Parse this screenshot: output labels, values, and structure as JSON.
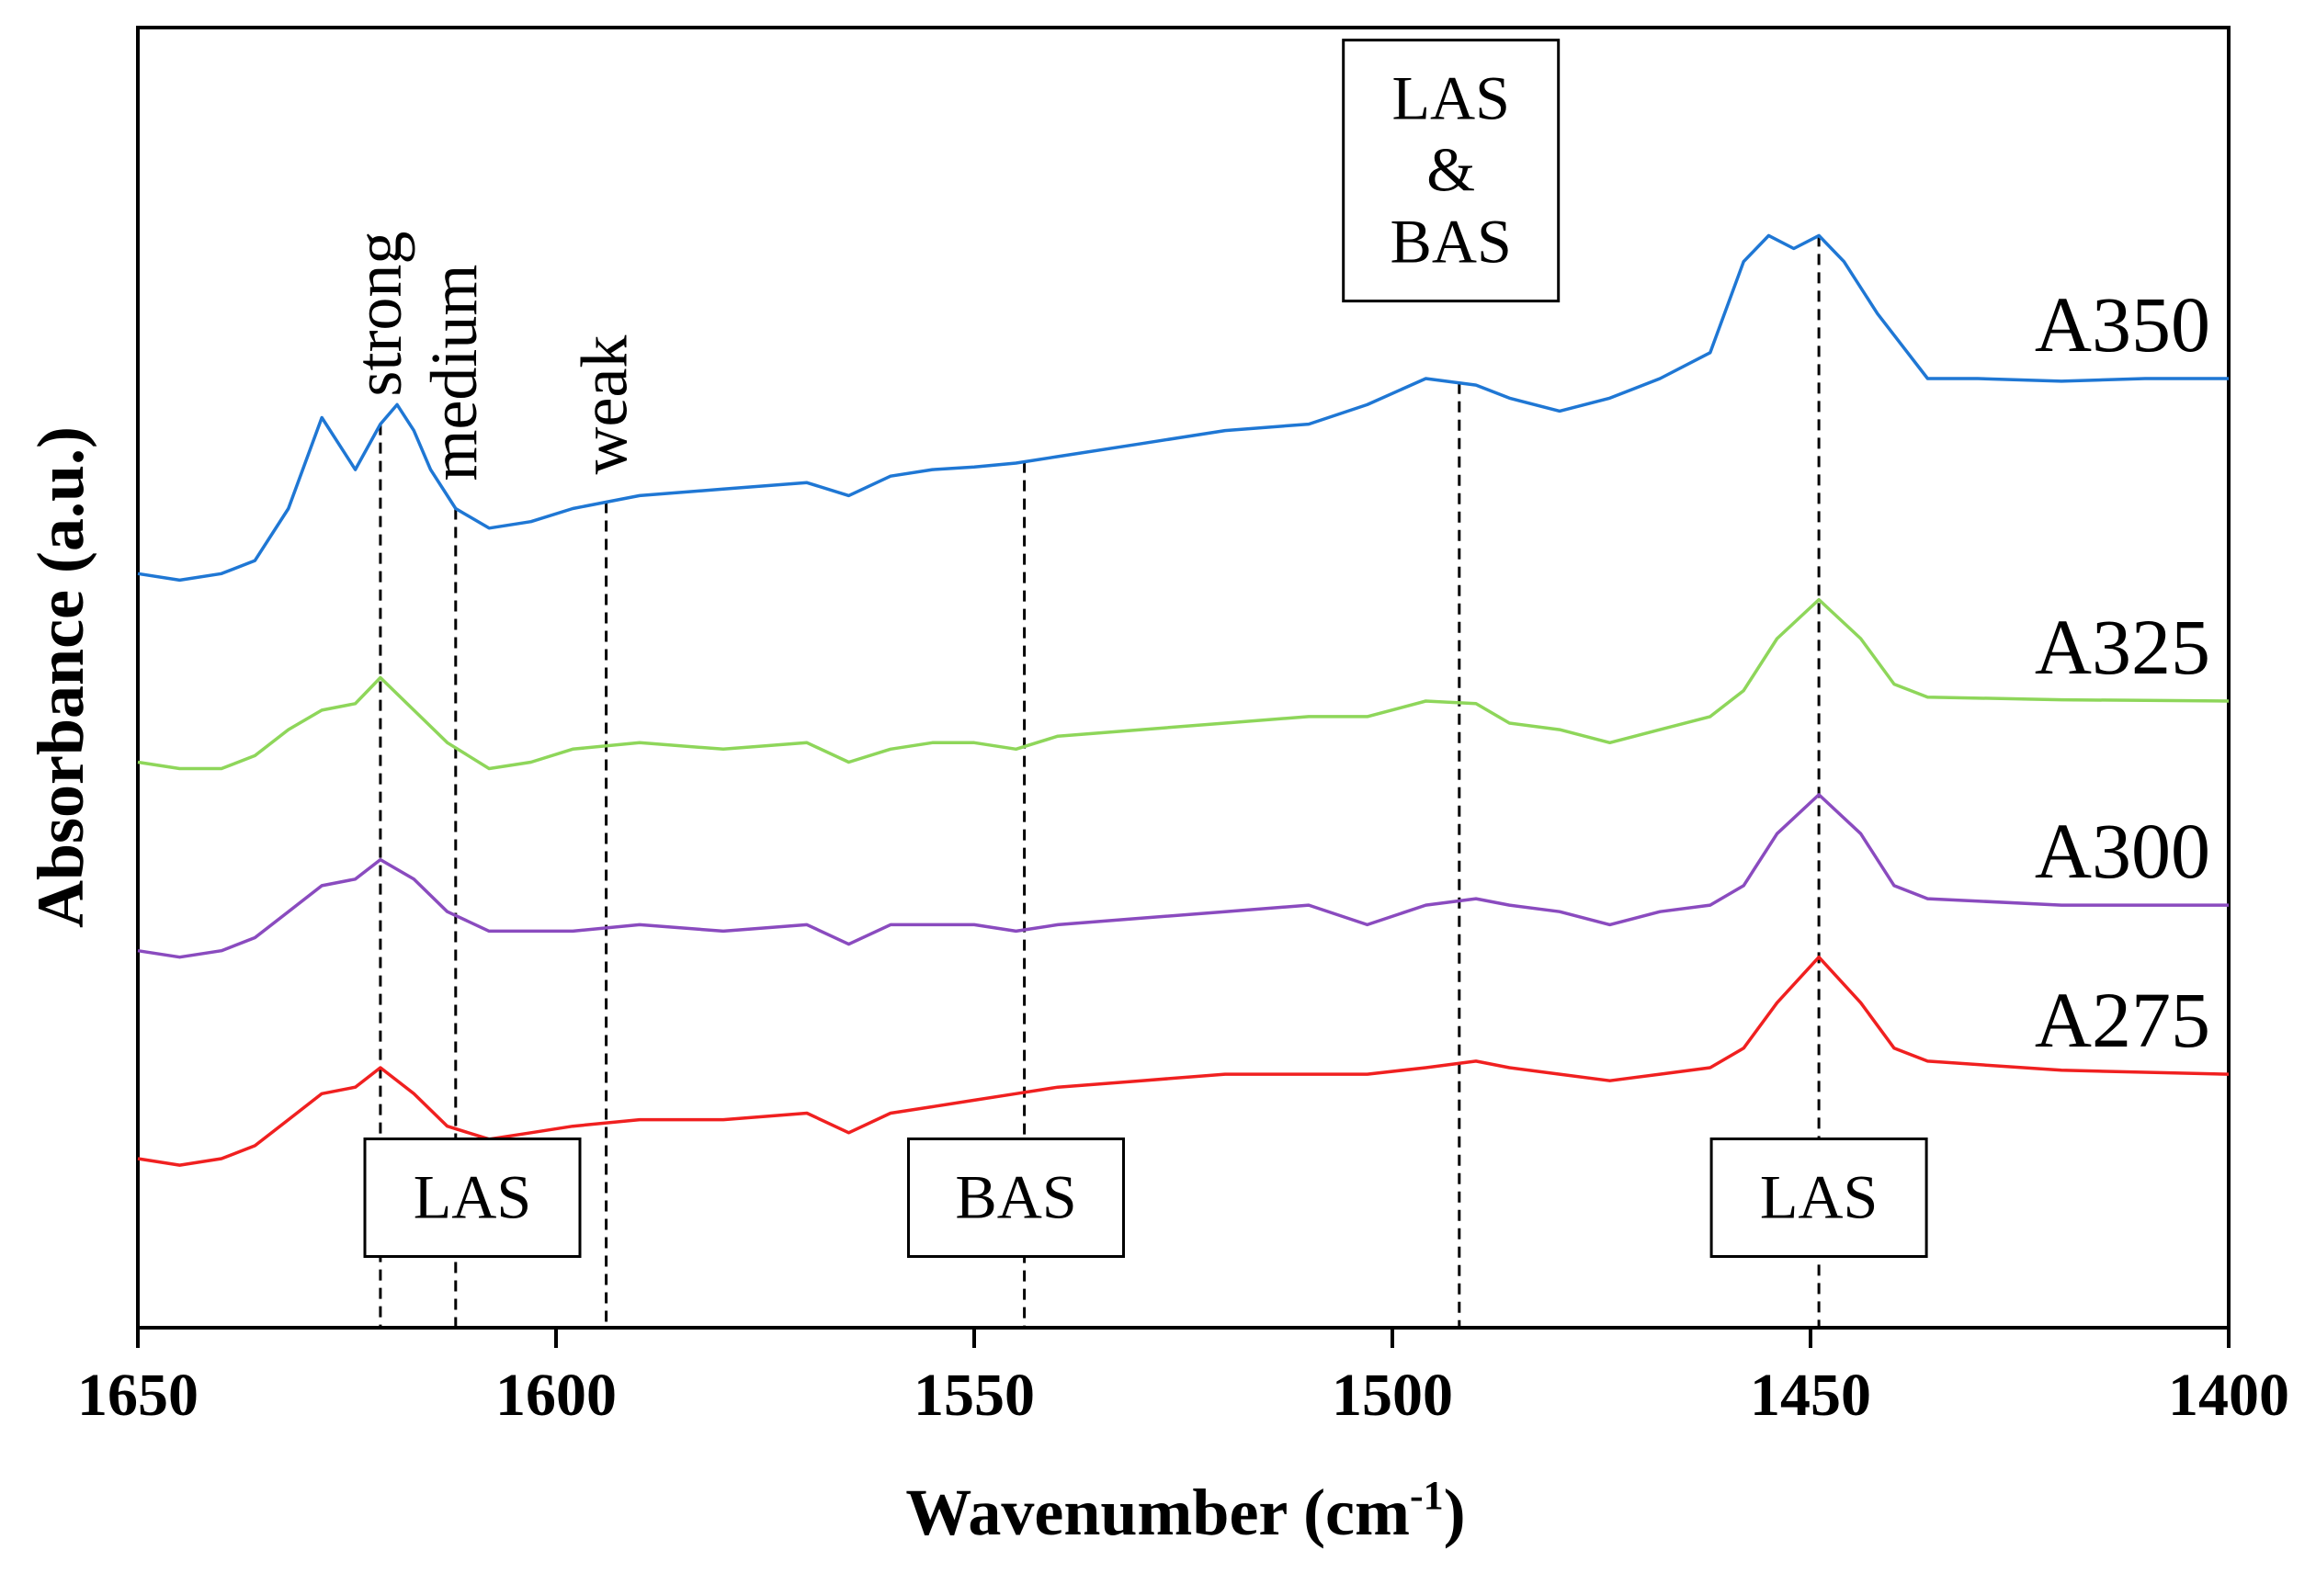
{
  "chart_data": {
    "type": "line",
    "title": "",
    "xlabel": "Wavenumber (cm",
    "xlabel_sup": "-1",
    "xlabel_close": ")",
    "ylabel": "Absorbance (a.u.)",
    "xlim": [
      1650,
      1400
    ],
    "ylim": [
      0,
      10
    ],
    "x_reversed": true,
    "grid": false,
    "legend": "inline labels at right end of each curve",
    "x_ticks": [
      1650,
      1600,
      1550,
      1500,
      1450,
      1400
    ],
    "x_tick_labels": [
      "1650",
      "1600",
      "1550",
      "1500",
      "1450",
      "1400"
    ],
    "series": [
      {
        "name": "A350",
        "color": "#1f77d4",
        "x": [
          1650,
          1645,
          1640,
          1636,
          1632,
          1628,
          1624,
          1621,
          1619,
          1617,
          1615,
          1612,
          1608,
          1603,
          1598,
          1590,
          1580,
          1570,
          1565,
          1560,
          1555,
          1550,
          1545,
          1540,
          1530,
          1520,
          1510,
          1503,
          1496,
          1490,
          1486,
          1480,
          1474,
          1468,
          1462,
          1458,
          1455,
          1452,
          1449,
          1446,
          1442,
          1436,
          1430,
          1420,
          1410,
          1400
        ],
        "values": [
          5.8,
          5.75,
          5.8,
          5.9,
          6.3,
          7.0,
          6.6,
          6.95,
          7.1,
          6.9,
          6.6,
          6.3,
          6.15,
          6.2,
          6.3,
          6.4,
          6.45,
          6.5,
          6.4,
          6.55,
          6.6,
          6.62,
          6.65,
          6.7,
          6.8,
          6.9,
          6.95,
          7.1,
          7.3,
          7.25,
          7.15,
          7.05,
          7.15,
          7.3,
          7.5,
          8.2,
          8.4,
          8.3,
          8.4,
          8.2,
          7.8,
          7.3,
          7.3,
          7.28,
          7.3,
          7.3
        ]
      },
      {
        "name": "A325",
        "color": "#8ed65a",
        "x": [
          1650,
          1645,
          1640,
          1636,
          1632,
          1628,
          1624,
          1621,
          1617,
          1613,
          1608,
          1603,
          1598,
          1590,
          1580,
          1570,
          1565,
          1560,
          1555,
          1550,
          1545,
          1540,
          1530,
          1520,
          1510,
          1503,
          1496,
          1490,
          1486,
          1480,
          1474,
          1468,
          1462,
          1458,
          1454,
          1449,
          1444,
          1440,
          1436,
          1420,
          1400
        ],
        "values": [
          4.35,
          4.3,
          4.3,
          4.4,
          4.6,
          4.75,
          4.8,
          5.0,
          4.75,
          4.5,
          4.3,
          4.35,
          4.45,
          4.5,
          4.45,
          4.5,
          4.35,
          4.45,
          4.5,
          4.5,
          4.45,
          4.55,
          4.6,
          4.65,
          4.7,
          4.7,
          4.82,
          4.8,
          4.65,
          4.6,
          4.5,
          4.6,
          4.7,
          4.9,
          5.3,
          5.6,
          5.3,
          4.95,
          4.85,
          4.83,
          4.82
        ]
      },
      {
        "name": "A300",
        "color": "#8a4bbf",
        "x": [
          1650,
          1645,
          1640,
          1636,
          1632,
          1628,
          1624,
          1621,
          1617,
          1613,
          1608,
          1603,
          1598,
          1590,
          1580,
          1570,
          1565,
          1560,
          1555,
          1550,
          1545,
          1540,
          1530,
          1520,
          1510,
          1503,
          1496,
          1490,
          1486,
          1480,
          1474,
          1468,
          1462,
          1458,
          1454,
          1449,
          1444,
          1440,
          1436,
          1420,
          1400
        ],
        "values": [
          2.9,
          2.85,
          2.9,
          3.0,
          3.2,
          3.4,
          3.45,
          3.6,
          3.45,
          3.2,
          3.05,
          3.05,
          3.05,
          3.1,
          3.05,
          3.1,
          2.95,
          3.1,
          3.1,
          3.1,
          3.05,
          3.1,
          3.15,
          3.2,
          3.25,
          3.1,
          3.25,
          3.3,
          3.25,
          3.2,
          3.1,
          3.2,
          3.25,
          3.4,
          3.8,
          4.1,
          3.8,
          3.4,
          3.3,
          3.25,
          3.25
        ]
      },
      {
        "name": "A275",
        "color": "#f02020",
        "x": [
          1650,
          1645,
          1640,
          1636,
          1632,
          1628,
          1624,
          1621,
          1617,
          1613,
          1608,
          1603,
          1598,
          1590,
          1580,
          1570,
          1565,
          1560,
          1555,
          1550,
          1545,
          1540,
          1530,
          1520,
          1510,
          1503,
          1496,
          1490,
          1486,
          1480,
          1474,
          1468,
          1462,
          1458,
          1454,
          1449,
          1444,
          1440,
          1436,
          1420,
          1400
        ],
        "values": [
          1.3,
          1.25,
          1.3,
          1.4,
          1.6,
          1.8,
          1.85,
          2.0,
          1.8,
          1.55,
          1.45,
          1.5,
          1.55,
          1.6,
          1.6,
          1.65,
          1.5,
          1.65,
          1.7,
          1.75,
          1.8,
          1.85,
          1.9,
          1.95,
          1.95,
          1.95,
          2.0,
          2.05,
          2.0,
          1.95,
          1.9,
          1.95,
          2.0,
          2.15,
          2.5,
          2.85,
          2.5,
          2.15,
          2.05,
          1.98,
          1.95
        ]
      }
    ],
    "reference_lines": [
      1621,
      1612,
      1594,
      1544,
      1492,
      1449
    ],
    "peak_labels": [
      {
        "text": "strong",
        "x": 1621
      },
      {
        "text": "medium",
        "x": 1612
      },
      {
        "text": "weak",
        "x": 1594
      }
    ],
    "boxed_annotations": [
      {
        "lines": [
          "LAS"
        ],
        "x": 1610,
        "y": 1.0
      },
      {
        "lines": [
          "BAS"
        ],
        "x": 1545,
        "y": 1.0
      },
      {
        "lines": [
          "LAS"
        ],
        "x": 1449,
        "y": 1.0
      },
      {
        "lines": [
          "LAS",
          "&",
          "BAS"
        ],
        "x": 1493,
        "y": 8.9
      }
    ]
  }
}
